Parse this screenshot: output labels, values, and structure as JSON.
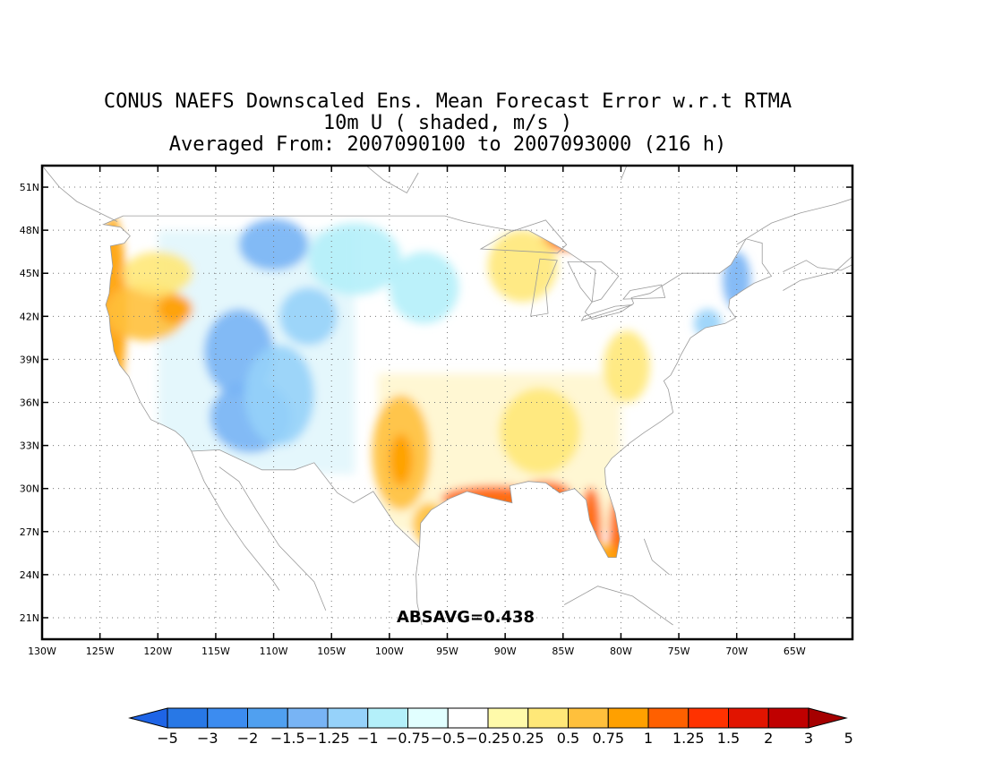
{
  "title": {
    "line1": "CONUS NAEFS Downscaled Ens. Mean Forecast Error w.r.t RTMA",
    "line2": "10m U ( shaded, m/s )",
    "line3": "Averaged From: 2007090100 to 2007093000 (216 h)"
  },
  "annotation": "ABSAVG=0.438",
  "map": {
    "lon_range": [
      -130,
      -60
    ],
    "lat_range": [
      19.5,
      52.5
    ],
    "lat_ticks": [
      {
        "value": 51,
        "label": "51N"
      },
      {
        "value": 48,
        "label": "48N"
      },
      {
        "value": 45,
        "label": "45N"
      },
      {
        "value": 42,
        "label": "42N"
      },
      {
        "value": 39,
        "label": "39N"
      },
      {
        "value": 36,
        "label": "36N"
      },
      {
        "value": 33,
        "label": "33N"
      },
      {
        "value": 30,
        "label": "30N"
      },
      {
        "value": 27,
        "label": "27N"
      },
      {
        "value": 24,
        "label": "24N"
      },
      {
        "value": 21,
        "label": "21N"
      }
    ],
    "lon_ticks": [
      {
        "value": -130,
        "label": "130W"
      },
      {
        "value": -125,
        "label": "125W"
      },
      {
        "value": -120,
        "label": "120W"
      },
      {
        "value": -115,
        "label": "115W"
      },
      {
        "value": -110,
        "label": "110W"
      },
      {
        "value": -105,
        "label": "105W"
      },
      {
        "value": -100,
        "label": "100W"
      },
      {
        "value": -95,
        "label": "95W"
      },
      {
        "value": -90,
        "label": "90W"
      },
      {
        "value": -85,
        "label": "85W"
      },
      {
        "value": -80,
        "label": "80W"
      },
      {
        "value": -75,
        "label": "75W"
      },
      {
        "value": -70,
        "label": "70W"
      },
      {
        "value": -65,
        "label": "65W"
      }
    ],
    "grid": true
  },
  "colorbar": {
    "colors": [
      "#1e64e6",
      "#2878e6",
      "#3c8cf0",
      "#50a0f0",
      "#78b4f5",
      "#96d2fa",
      "#b4f0fa",
      "#e1ffff",
      "#ffffff",
      "#fffaaa",
      "#ffe878",
      "#ffc03c",
      "#ffa000",
      "#ff6000",
      "#ff3200",
      "#e11400",
      "#c00000",
      "#a50000"
    ],
    "labels": [
      "−5",
      "−3",
      "−2",
      "−1.5",
      "−1.25",
      "−1",
      "−0.75",
      "−0.5",
      "−0.25",
      "0.25",
      "0.5",
      "0.75",
      "1",
      "1.25",
      "1.5",
      "2",
      "3",
      "5"
    ]
  },
  "field_blobs": [
    {
      "lon": -123.9,
      "lat": 42.5,
      "rx": 1.2,
      "ry": 6.5,
      "color": "#ffa000"
    },
    {
      "lon": -121.0,
      "lat": 42.3,
      "rx": 3.5,
      "ry": 2.0,
      "color": "#ffc03c"
    },
    {
      "lon": -118.5,
      "lat": 42.5,
      "rx": 1.5,
      "ry": 1.0,
      "color": "#ffa000"
    },
    {
      "lon": -120.0,
      "lat": 45.0,
      "rx": 3.0,
      "ry": 1.5,
      "color": "#ffe878"
    },
    {
      "lon": -113.0,
      "lat": 39.5,
      "rx": 3.0,
      "ry": 3.0,
      "color": "#78b4f5"
    },
    {
      "lon": -112.0,
      "lat": 35.0,
      "rx": 3.5,
      "ry": 2.5,
      "color": "#78b4f5"
    },
    {
      "lon": -109.5,
      "lat": 36.5,
      "rx": 3.0,
      "ry": 3.5,
      "color": "#96d2fa"
    },
    {
      "lon": -110.0,
      "lat": 47.0,
      "rx": 3.0,
      "ry": 1.8,
      "color": "#78b4f5"
    },
    {
      "lon": -107.0,
      "lat": 42.0,
      "rx": 2.5,
      "ry": 2.0,
      "color": "#96d2fa"
    },
    {
      "lon": -103.0,
      "lat": 46.0,
      "rx": 4.0,
      "ry": 2.5,
      "color": "#b4f0fa"
    },
    {
      "lon": -97.0,
      "lat": 44.0,
      "rx": 3.0,
      "ry": 2.5,
      "color": "#b4f0fa"
    },
    {
      "lon": -99.0,
      "lat": 32.5,
      "rx": 2.5,
      "ry": 4.0,
      "color": "#ffc03c"
    },
    {
      "lon": -99.0,
      "lat": 32.0,
      "rx": 1.0,
      "ry": 1.8,
      "color": "#ffa000"
    },
    {
      "lon": -96.5,
      "lat": 27.5,
      "rx": 1.5,
      "ry": 1.5,
      "color": "#ffc03c"
    },
    {
      "lon": -91.0,
      "lat": 29.3,
      "rx": 4.5,
      "ry": 0.9,
      "color": "#ff6000"
    },
    {
      "lon": -86.5,
      "lat": 29.6,
      "rx": 2.2,
      "ry": 0.9,
      "color": "#ff6000"
    },
    {
      "lon": -82.6,
      "lat": 27.3,
      "rx": 0.9,
      "ry": 2.8,
      "color": "#ff6000"
    },
    {
      "lon": -80.2,
      "lat": 27.0,
      "rx": 0.8,
      "ry": 2.6,
      "color": "#ff6000"
    },
    {
      "lon": -81.3,
      "lat": 25.0,
      "rx": 1.5,
      "ry": 1.0,
      "color": "#ffa000"
    },
    {
      "lon": -87.0,
      "lat": 34.0,
      "rx": 3.5,
      "ry": 3.0,
      "color": "#ffe878"
    },
    {
      "lon": -85.0,
      "lat": 47.3,
      "rx": 2.0,
      "ry": 0.7,
      "color": "#ff6000"
    },
    {
      "lon": -88.5,
      "lat": 45.5,
      "rx": 3.0,
      "ry": 2.5,
      "color": "#ffe878"
    },
    {
      "lon": -79.5,
      "lat": 38.5,
      "rx": 2.0,
      "ry": 2.5,
      "color": "#ffe878"
    },
    {
      "lon": -70.0,
      "lat": 44.5,
      "rx": 1.2,
      "ry": 2.0,
      "color": "#78b4f5"
    },
    {
      "lon": -72.5,
      "lat": 41.5,
      "rx": 1.2,
      "ry": 1.0,
      "color": "#96d2fa"
    }
  ]
}
